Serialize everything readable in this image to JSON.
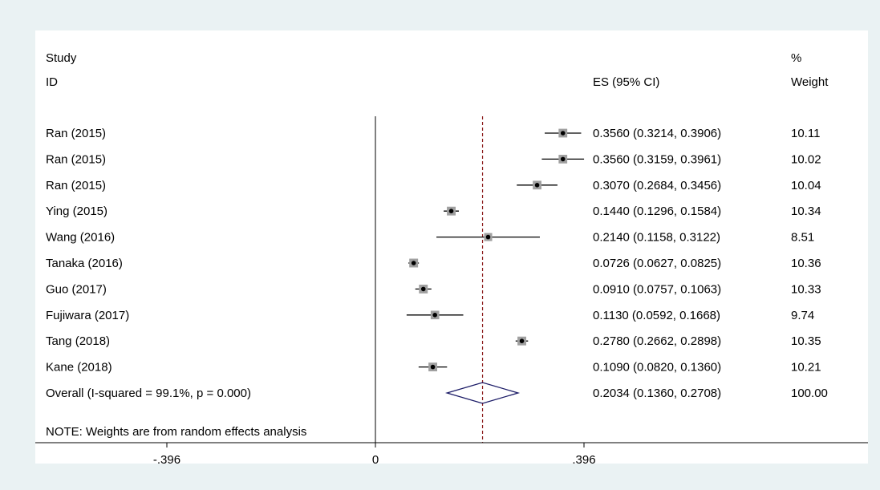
{
  "chart_data": {
    "type": "forest",
    "header": {
      "study_line1": "Study",
      "study_line2": "ID",
      "es_label": "ES (95% CI)",
      "weight_line1": "%",
      "weight_line2": "Weight"
    },
    "studies": [
      {
        "label": "Ran (2015)",
        "es": 0.356,
        "lo": 0.3214,
        "hi": 0.3906,
        "ci_text": "0.3560 (0.3214, 0.3906)",
        "weight": 10.11,
        "weight_text": "10.11"
      },
      {
        "label": "Ran (2015)",
        "es": 0.356,
        "lo": 0.3159,
        "hi": 0.3961,
        "ci_text": "0.3560 (0.3159, 0.3961)",
        "weight": 10.02,
        "weight_text": "10.02"
      },
      {
        "label": "Ran (2015)",
        "es": 0.307,
        "lo": 0.2684,
        "hi": 0.3456,
        "ci_text": "0.3070 (0.2684, 0.3456)",
        "weight": 10.04,
        "weight_text": "10.04"
      },
      {
        "label": "Ying (2015)",
        "es": 0.144,
        "lo": 0.1296,
        "hi": 0.1584,
        "ci_text": "0.1440 (0.1296, 0.1584)",
        "weight": 10.34,
        "weight_text": "10.34"
      },
      {
        "label": "Wang (2016)",
        "es": 0.214,
        "lo": 0.1158,
        "hi": 0.3122,
        "ci_text": "0.2140 (0.1158, 0.3122)",
        "weight": 8.51,
        "weight_text": "8.51"
      },
      {
        "label": "Tanaka (2016)",
        "es": 0.0726,
        "lo": 0.0627,
        "hi": 0.0825,
        "ci_text": "0.0726 (0.0627, 0.0825)",
        "weight": 10.36,
        "weight_text": "10.36"
      },
      {
        "label": "Guo (2017)",
        "es": 0.091,
        "lo": 0.0757,
        "hi": 0.1063,
        "ci_text": "0.0910 (0.0757, 0.1063)",
        "weight": 10.33,
        "weight_text": "10.33"
      },
      {
        "label": "Fujiwara (2017)",
        "es": 0.113,
        "lo": 0.0592,
        "hi": 0.1668,
        "ci_text": "0.1130 (0.0592, 0.1668)",
        "weight": 9.74,
        "weight_text": "9.74"
      },
      {
        "label": "Tang (2018)",
        "es": 0.278,
        "lo": 0.2662,
        "hi": 0.2898,
        "ci_text": "0.2780 (0.2662, 0.2898)",
        "weight": 10.35,
        "weight_text": "10.35"
      },
      {
        "label": "Kane (2018)",
        "es": 0.109,
        "lo": 0.082,
        "hi": 0.136,
        "ci_text": "0.1090 (0.0820, 0.1360)",
        "weight": 10.21,
        "weight_text": "10.21"
      }
    ],
    "overall": {
      "label": "Overall  (I-squared = 99.1%, p = 0.000)",
      "es": 0.2034,
      "lo": 0.136,
      "hi": 0.2708,
      "ci_text": "0.2034 (0.1360, 0.2708)",
      "weight_text": "100.00"
    },
    "note": "NOTE: Weights are from random effects analysis",
    "null_value": 0,
    "x_ticks": [
      {
        "value": -0.396,
        "label": "-.396"
      },
      {
        "value": 0,
        "label": "0"
      },
      {
        "value": 0.396,
        "label": ".396"
      }
    ],
    "colors": {
      "background": "#eaf2f3",
      "panel": "#ffffff",
      "ci_line": "#000000",
      "weight_box": "#a0a0a0",
      "point": "#000000",
      "overall_line": "#8b1a1a",
      "diamond": "#1a1a66"
    }
  }
}
